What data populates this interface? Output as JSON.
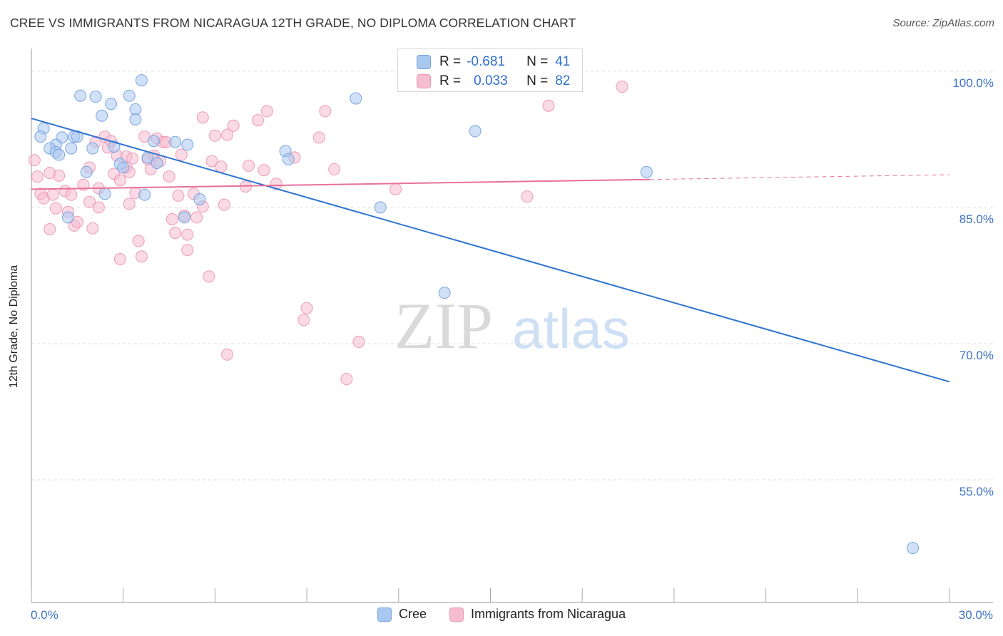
{
  "title": "CREE VS IMMIGRANTS FROM NICARAGUA 12TH GRADE, NO DIPLOMA CORRELATION CHART",
  "source": "Source: ZipAtlas.com",
  "watermark": {
    "zip": "ZIP",
    "atlas": "atlas"
  },
  "colors": {
    "cree_fill": "#a9c8f0",
    "cree_stroke": "#7aa5e0",
    "cree_line": "#2f74d0",
    "nic_fill": "#f6bcd0",
    "nic_stroke": "#ee9ab8",
    "nic_line": "#e8709a",
    "tick_label": "#3d72c4",
    "grid": "#dddddd"
  },
  "legend_stats": [
    {
      "r_label": "R =",
      "r_value": "-0.681",
      "n_label": "N =",
      "n_value": "41"
    },
    {
      "r_label": "R =",
      "r_value": "0.033",
      "n_label": "N =",
      "n_value": "82"
    }
  ],
  "chart_data": {
    "type": "scatter",
    "xlabel": "",
    "ylabel": "12th Grade, No Diploma",
    "xlim": [
      0,
      30
    ],
    "ylim": [
      41.5,
      102.5
    ],
    "x_tick_labels": {
      "min": "0.0%",
      "max": "30.0%"
    },
    "y_ticks": [
      {
        "value": 100,
        "label": "100.0%"
      },
      {
        "value": 85,
        "label": "85.0%"
      },
      {
        "value": 70,
        "label": "70.0%"
      },
      {
        "value": 55,
        "label": "55.0%"
      }
    ],
    "grid": true,
    "legend_position": "bottom-center",
    "series": [
      {
        "name": "Cree",
        "r": -0.681,
        "n": 41,
        "trend": {
          "x0": 0,
          "y0": 94.8,
          "x1": 30,
          "y1": 65.8,
          "dashed_from": null
        },
        "points": [
          [
            3.6,
            99.0
          ],
          [
            1.6,
            97.3
          ],
          [
            2.1,
            97.2
          ],
          [
            3.2,
            97.3
          ],
          [
            2.6,
            96.4
          ],
          [
            3.4,
            95.8
          ],
          [
            2.3,
            95.1
          ],
          [
            3.4,
            94.7
          ],
          [
            0.4,
            93.7
          ],
          [
            0.3,
            92.8
          ],
          [
            1.0,
            92.7
          ],
          [
            1.4,
            92.8
          ],
          [
            1.5,
            92.8
          ],
          [
            0.8,
            91.9
          ],
          [
            0.6,
            91.5
          ],
          [
            1.3,
            91.5
          ],
          [
            2.0,
            91.5
          ],
          [
            2.7,
            91.7
          ],
          [
            4.0,
            92.3
          ],
          [
            4.7,
            92.2
          ],
          [
            5.1,
            91.9
          ],
          [
            0.8,
            91.1
          ],
          [
            0.9,
            90.8
          ],
          [
            3.8,
            90.5
          ],
          [
            4.1,
            89.9
          ],
          [
            2.9,
            89.8
          ],
          [
            3.0,
            89.4
          ],
          [
            1.8,
            88.9
          ],
          [
            8.3,
            91.2
          ],
          [
            8.4,
            90.3
          ],
          [
            10.6,
            97.0
          ],
          [
            14.5,
            93.4
          ],
          [
            20.1,
            88.9
          ],
          [
            2.4,
            86.5
          ],
          [
            3.7,
            86.4
          ],
          [
            5.5,
            85.9
          ],
          [
            11.4,
            85.0
          ],
          [
            1.2,
            83.9
          ],
          [
            5.0,
            83.9
          ],
          [
            13.5,
            75.6
          ],
          [
            28.8,
            47.5
          ]
        ]
      },
      {
        "name": "Immigrants from Nicaragua",
        "r": 0.033,
        "n": 82,
        "trend": {
          "x0": 0,
          "y0": 87.0,
          "x1": 30,
          "y1": 88.6,
          "dashed_from": 20.2
        },
        "points": [
          [
            0.1,
            90.2
          ],
          [
            0.2,
            88.4
          ],
          [
            0.3,
            86.5
          ],
          [
            0.4,
            86.0
          ],
          [
            0.6,
            88.8
          ],
          [
            0.7,
            86.4
          ],
          [
            0.8,
            84.9
          ],
          [
            0.6,
            82.6
          ],
          [
            0.9,
            88.5
          ],
          [
            1.1,
            86.8
          ],
          [
            1.3,
            86.4
          ],
          [
            1.2,
            84.5
          ],
          [
            1.4,
            83.0
          ],
          [
            1.5,
            83.4
          ],
          [
            1.7,
            87.5
          ],
          [
            1.9,
            85.6
          ],
          [
            1.9,
            89.4
          ],
          [
            2.0,
            82.7
          ],
          [
            2.1,
            92.2
          ],
          [
            2.2,
            85.0
          ],
          [
            2.2,
            87.1
          ],
          [
            2.4,
            92.8
          ],
          [
            2.5,
            91.6
          ],
          [
            2.6,
            92.3
          ],
          [
            2.7,
            88.7
          ],
          [
            2.8,
            90.7
          ],
          [
            2.9,
            88.0
          ],
          [
            3.1,
            89.4
          ],
          [
            3.1,
            90.6
          ],
          [
            3.2,
            88.9
          ],
          [
            3.2,
            85.4
          ],
          [
            3.3,
            90.4
          ],
          [
            3.4,
            86.6
          ],
          [
            3.5,
            81.3
          ],
          [
            3.6,
            79.6
          ],
          [
            2.9,
            79.3
          ],
          [
            3.7,
            92.8
          ],
          [
            3.8,
            90.3
          ],
          [
            3.9,
            89.2
          ],
          [
            4.0,
            90.7
          ],
          [
            4.1,
            92.6
          ],
          [
            4.2,
            90.1
          ],
          [
            4.3,
            92.2
          ],
          [
            4.4,
            92.2
          ],
          [
            4.5,
            88.4
          ],
          [
            4.6,
            83.7
          ],
          [
            4.7,
            82.2
          ],
          [
            4.8,
            86.3
          ],
          [
            4.9,
            90.8
          ],
          [
            5.0,
            84.1
          ],
          [
            5.1,
            82.0
          ],
          [
            5.1,
            80.3
          ],
          [
            5.3,
            86.5
          ],
          [
            5.4,
            83.9
          ],
          [
            5.6,
            85.1
          ],
          [
            5.8,
            77.4
          ],
          [
            5.6,
            94.9
          ],
          [
            5.9,
            90.1
          ],
          [
            6.0,
            92.9
          ],
          [
            6.2,
            89.5
          ],
          [
            6.3,
            85.3
          ],
          [
            6.4,
            93.0
          ],
          [
            6.6,
            94.0
          ],
          [
            6.4,
            68.8
          ],
          [
            7.0,
            87.3
          ],
          [
            7.1,
            89.6
          ],
          [
            7.6,
            89.1
          ],
          [
            7.4,
            94.6
          ],
          [
            7.7,
            95.6
          ],
          [
            8.0,
            87.6
          ],
          [
            8.6,
            90.5
          ],
          [
            8.9,
            72.6
          ],
          [
            9.0,
            73.9
          ],
          [
            9.4,
            92.7
          ],
          [
            9.6,
            95.6
          ],
          [
            9.9,
            89.2
          ],
          [
            10.3,
            66.1
          ],
          [
            10.7,
            70.2
          ],
          [
            11.9,
            87.0
          ],
          [
            16.2,
            86.2
          ],
          [
            16.9,
            96.2
          ],
          [
            19.3,
            98.3
          ]
        ]
      }
    ]
  }
}
